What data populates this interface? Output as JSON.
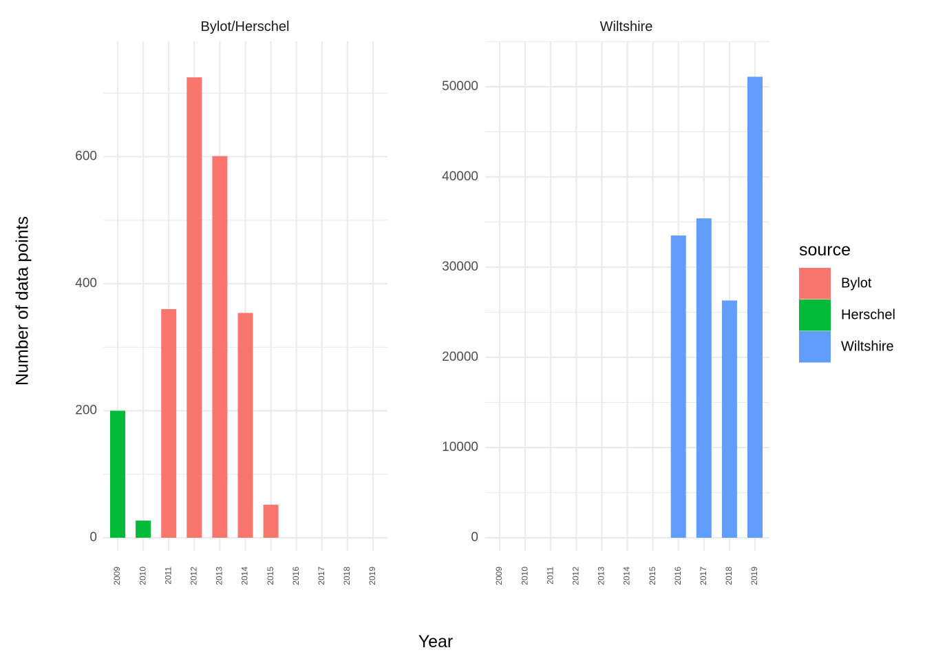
{
  "chart_data": {
    "type": "bar",
    "xlabel": "Year",
    "ylabel": "Number of data points",
    "categories": [
      "2009",
      "2010",
      "2011",
      "2012",
      "2013",
      "2014",
      "2015",
      "2016",
      "2017",
      "2018",
      "2019"
    ],
    "legend": {
      "title": "source",
      "position": "right",
      "entries": [
        {
          "name": "Bylot",
          "color": "#F8766D"
        },
        {
          "name": "Herschel",
          "color": "#00BA38"
        },
        {
          "name": "Wiltshire",
          "color": "#619CFF"
        }
      ]
    },
    "grid": true,
    "panels": [
      {
        "title": "Bylot/Herschel",
        "ylim": [
          0,
          760
        ],
        "yticks": [
          0,
          200,
          400,
          600
        ],
        "yticklabels": [
          "0",
          "200",
          "400",
          "600"
        ],
        "bars": [
          {
            "x": "2009",
            "value": 200,
            "source": "Herschel"
          },
          {
            "x": "2010",
            "value": 27,
            "source": "Herschel"
          },
          {
            "x": "2011",
            "value": 360,
            "source": "Bylot"
          },
          {
            "x": "2012",
            "value": 725,
            "source": "Bylot"
          },
          {
            "x": "2013",
            "value": 601,
            "source": "Bylot"
          },
          {
            "x": "2014",
            "value": 354,
            "source": "Bylot"
          },
          {
            "x": "2015",
            "value": 52,
            "source": "Bylot"
          }
        ]
      },
      {
        "title": "Wiltshire",
        "ylim": [
          0,
          53500
        ],
        "yticks": [
          0,
          10000,
          20000,
          30000,
          40000,
          50000
        ],
        "yticklabels": [
          "0",
          "10000",
          "20000",
          "30000",
          "40000",
          "50000"
        ],
        "bars": [
          {
            "x": "2016",
            "value": 33500,
            "source": "Wiltshire"
          },
          {
            "x": "2017",
            "value": 35400,
            "source": "Wiltshire"
          },
          {
            "x": "2018",
            "value": 26300,
            "source": "Wiltshire"
          },
          {
            "x": "2019",
            "value": 51100,
            "source": "Wiltshire"
          }
        ]
      }
    ]
  }
}
